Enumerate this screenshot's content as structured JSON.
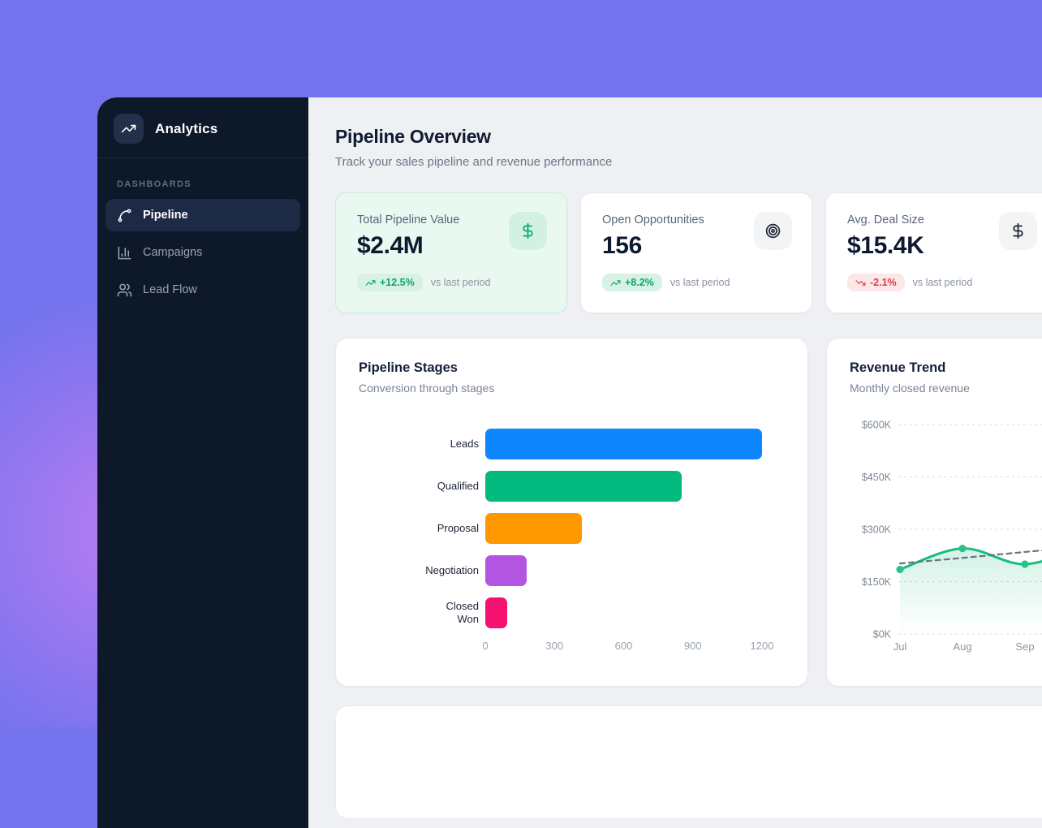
{
  "app": {
    "title": "Analytics"
  },
  "colors": {
    "background_purple": "#7473ee",
    "background_blob": "#b87cf2",
    "sidebar": "#0d1828",
    "content_bg": "#eef0f3",
    "highlight_card_bg": "#e9f9f1",
    "positive": "#0da371",
    "negative": "#e0394a"
  },
  "sidebar": {
    "section_label": "DASHBOARDS",
    "items": [
      {
        "label": "Pipeline",
        "icon": "spline-icon",
        "active": true
      },
      {
        "label": "Campaigns",
        "icon": "bar-chart-icon",
        "active": false
      },
      {
        "label": "Lead Flow",
        "icon": "users-icon",
        "active": false
      }
    ]
  },
  "header": {
    "title": "Pipeline Overview",
    "subtitle": "Track your sales pipeline and revenue performance"
  },
  "stats": [
    {
      "label": "Total Pipeline Value",
      "value": "$2.4M",
      "change": "+12.5%",
      "direction": "up",
      "compare_text": "vs last period",
      "icon": "dollar-icon",
      "highlighted": true
    },
    {
      "label": "Open Opportunities",
      "value": "156",
      "change": "+8.2%",
      "direction": "up",
      "compare_text": "vs last period",
      "icon": "target-icon",
      "highlighted": false
    },
    {
      "label": "Avg. Deal Size",
      "value": "$15.4K",
      "change": "-2.1%",
      "direction": "down",
      "compare_text": "vs last period",
      "icon": "dollar-icon",
      "highlighted": false
    }
  ],
  "chart_data": [
    {
      "type": "bar",
      "orientation": "horizontal",
      "title": "Pipeline Stages",
      "subtitle": "Conversion through stages",
      "categories": [
        "Leads",
        "Qualified",
        "Proposal",
        "Negotiation",
        "Closed\nWon"
      ],
      "values": [
        1200,
        850,
        420,
        180,
        95
      ],
      "colors": [
        "#0d87fb",
        "#02ba7d",
        "#ff9800",
        "#b355e0",
        "#f41170"
      ],
      "xlim": [
        0,
        1200
      ],
      "x_ticks": [
        0,
        300,
        600,
        900,
        1200
      ],
      "grid": false
    },
    {
      "type": "line",
      "title": "Revenue Trend",
      "subtitle": "Monthly closed revenue",
      "x": [
        "Jul",
        "Aug",
        "Sep",
        ""
      ],
      "series": [
        {
          "name": "closed-revenue",
          "values": [
            185000,
            245000,
            200000,
            255000
          ],
          "style": "solid",
          "color": "#17bd7e",
          "area": true,
          "points": true
        },
        {
          "name": "trend",
          "values": [
            202000,
            218000,
            235000,
            252000
          ],
          "style": "dashed",
          "color": "#6b7280",
          "area": false,
          "points": false
        }
      ],
      "ylim": [
        0,
        600000
      ],
      "y_ticks": [
        {
          "label": "$600K",
          "value": 600000
        },
        {
          "label": "$450K",
          "value": 450000
        },
        {
          "label": "$300K",
          "value": 300000
        },
        {
          "label": "$150K",
          "value": 150000
        },
        {
          "label": "$0K",
          "value": 0
        }
      ],
      "grid": "horizontal-dashed",
      "note": "chart continues past right edge of viewport"
    }
  ]
}
